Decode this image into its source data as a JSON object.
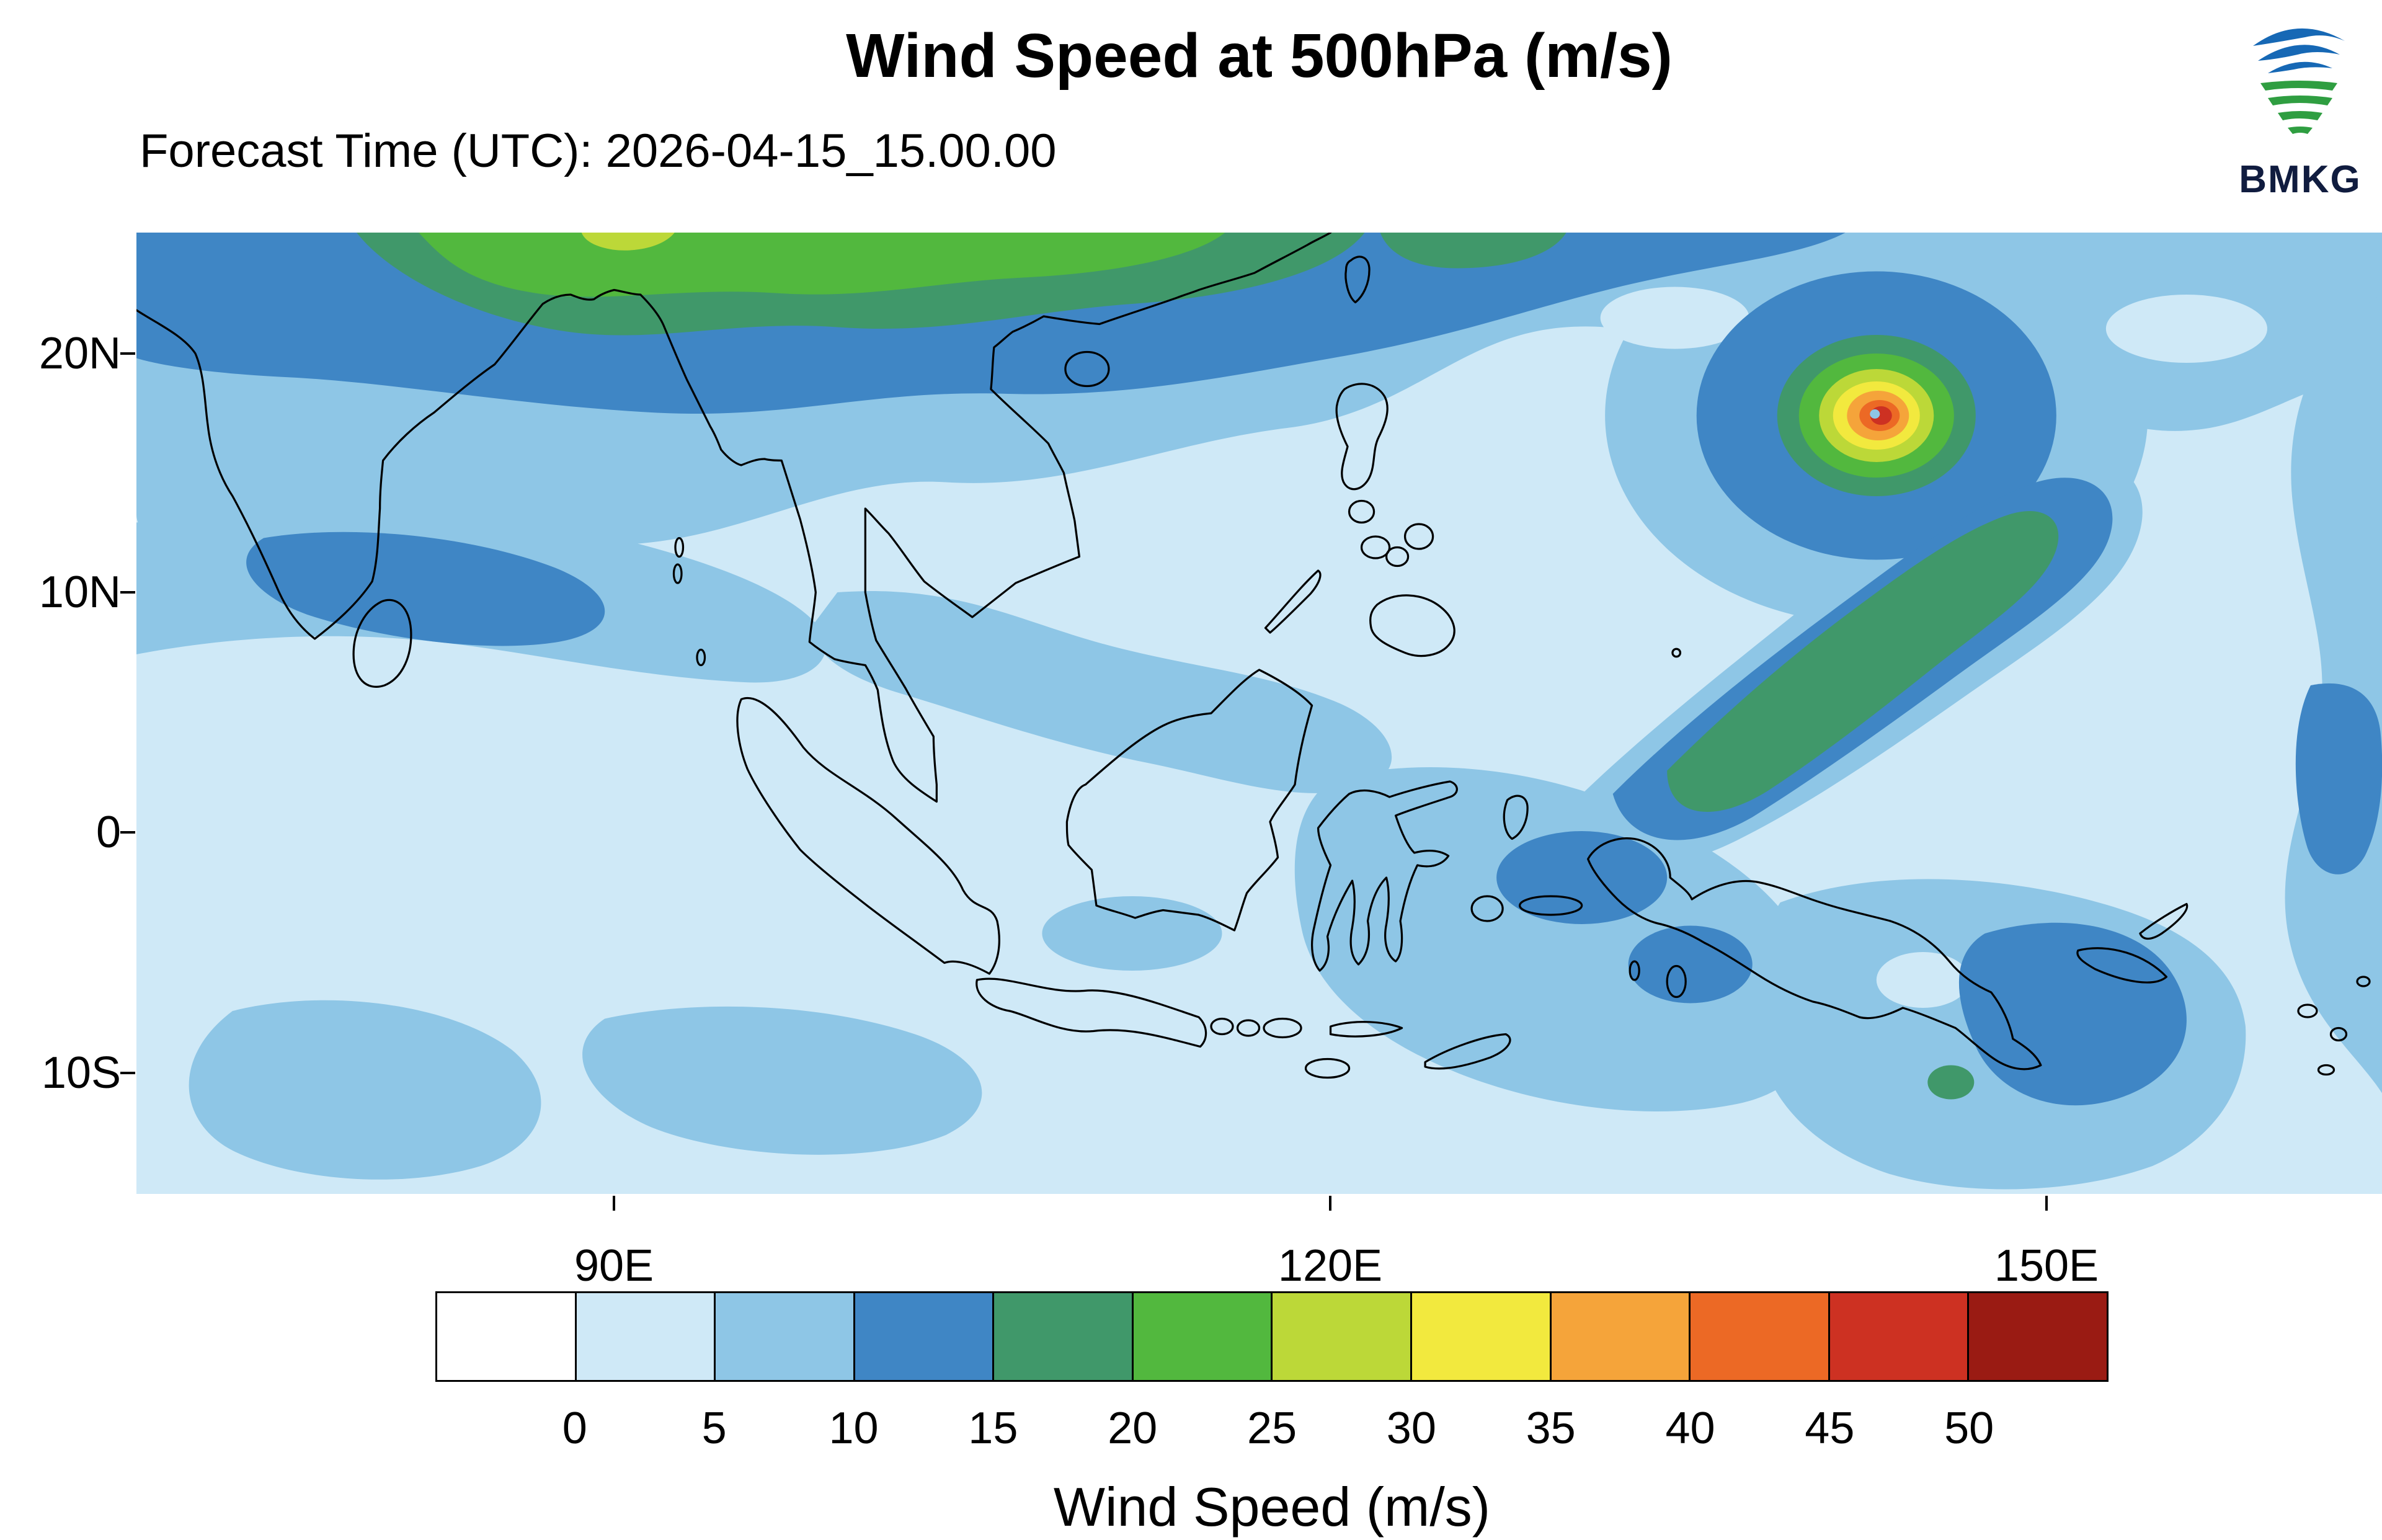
{
  "header": {
    "title": "Wind Speed at 500hPa (m/s)",
    "forecast_label": "Forecast Time (UTC): 2026-04-15_15.00.00",
    "logo_text": "BMKG"
  },
  "map": {
    "lat_ticks": [
      "20N",
      "10N",
      "0",
      "10S"
    ],
    "lon_ticks": [
      "90E",
      "120E",
      "150E"
    ]
  },
  "colorbar": {
    "title": "Wind Speed (m/s)",
    "tick_labels": [
      "0",
      "5",
      "10",
      "15",
      "20",
      "25",
      "30",
      "35",
      "40",
      "45",
      "50"
    ]
  },
  "chart_data": {
    "type": "heatmap",
    "title": "Wind Speed at 500hPa (m/s)",
    "subtitle": "Forecast Time (UTC): 2026-04-15_15.00.00",
    "provider": "BMKG",
    "colorbar_label": "Wind Speed (m/s)",
    "units": "m/s",
    "levels": [
      0,
      5,
      10,
      15,
      20,
      25,
      30,
      35,
      40,
      45,
      50
    ],
    "palette": [
      "#ffffff",
      "#cfe9f7",
      "#8ec6e6",
      "#3f86c5",
      "#40986a",
      "#52b83e",
      "#bcd838",
      "#f2e93e",
      "#f5a43a",
      "#ec6925",
      "#cd3122",
      "#9a1b13"
    ],
    "x_axis": {
      "label": "longitude",
      "ticks": [
        "90E",
        "120E",
        "150E"
      ],
      "range_approx": [
        "70E",
        "164E"
      ],
      "grid": false
    },
    "y_axis": {
      "label": "latitude",
      "ticks": [
        "20N",
        "10N",
        "0",
        "10S"
      ],
      "range_approx": [
        "15S",
        "25N"
      ],
      "grid": false
    },
    "legend_position": "bottom",
    "features": [
      {
        "name": "tropical-cyclone",
        "location_approx": "143E, 17N",
        "peak_band_mps": "45-50",
        "structure": "concentric rings 15-50 m/s with calm eye"
      },
      {
        "name": "subtropical-jet-band",
        "location_approx": "northern edge, 78E-112E (Himalaya / South China)",
        "band_mps": "15-30"
      },
      {
        "name": "diagonal-band-sw-of-cyclone",
        "location_approx": "128E-142E, 5N-13N",
        "band_mps": "15-20"
      },
      {
        "name": "bay-of-bengal-band",
        "location_approx": "75E-98E, 8N-13N",
        "band_mps": "10-15"
      },
      {
        "name": "banda-arafura-patch",
        "location_approx": "120E-140E, 0-10S",
        "band_mps": "10-15"
      },
      {
        "name": "background-flow",
        "band_mps": "0-10"
      }
    ]
  }
}
